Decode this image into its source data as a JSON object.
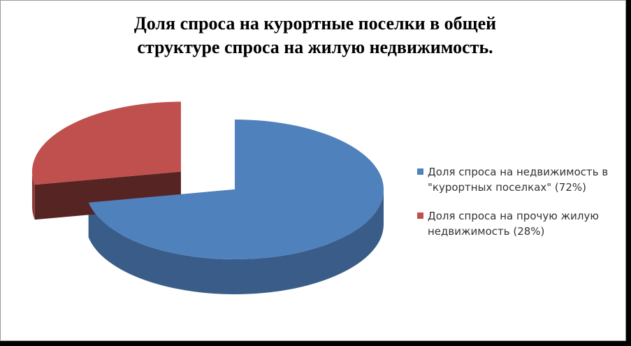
{
  "chart_data": {
    "type": "pie3d",
    "title": "Доля спроса на курортные поселки в общей структуре спроса на жилую недвижимость.",
    "series": [
      {
        "name": "Доля спроса на недвижимость в \"курортных поселках\" (72%)",
        "color": "#4f81bd",
        "value": 72
      },
      {
        "name": "Доля спроса на прочую жилую недвижимость (28%)",
        "color": "#c0504d",
        "value": 28
      }
    ],
    "legend": "right"
  }
}
